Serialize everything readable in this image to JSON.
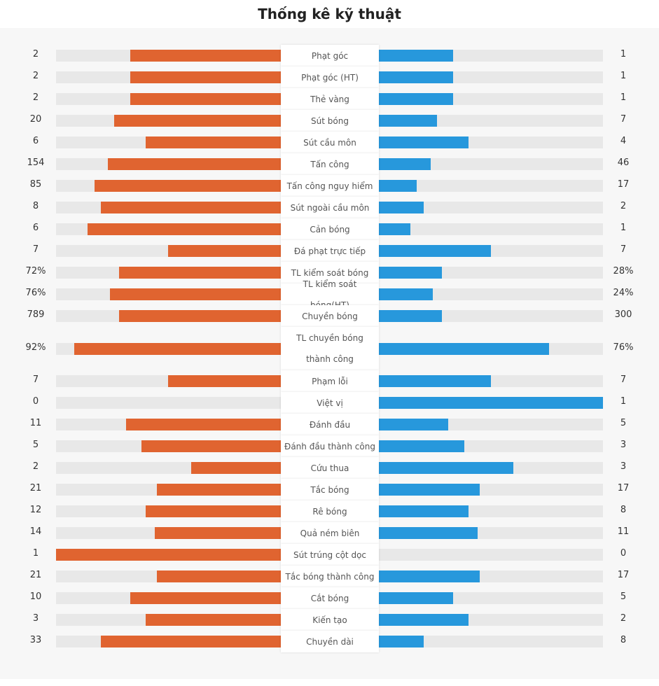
{
  "title": "Thống kê kỹ thuật",
  "colors": {
    "home": "#e06430",
    "away": "#2798dc",
    "track": "#e8e8e8"
  },
  "chart_data": {
    "type": "bar",
    "orientation": "diverging-horizontal",
    "title": "Thống kê kỹ thuật",
    "series": [
      {
        "name": "home",
        "side": "left",
        "color": "#e06430"
      },
      {
        "name": "away",
        "side": "right",
        "color": "#2798dc"
      }
    ],
    "stats": [
      {
        "label": "Phạt góc",
        "home": "2",
        "away": "1",
        "home_fill": 0.67,
        "away_fill": 0.33
      },
      {
        "label": "Phạt góc (HT)",
        "home": "2",
        "away": "1",
        "home_fill": 0.67,
        "away_fill": 0.33
      },
      {
        "label": "Thẻ vàng",
        "home": "2",
        "away": "1",
        "home_fill": 0.67,
        "away_fill": 0.33
      },
      {
        "label": "Sút bóng",
        "home": "20",
        "away": "7",
        "home_fill": 0.74,
        "away_fill": 0.26
      },
      {
        "label": "Sút cầu môn",
        "home": "6",
        "away": "4",
        "home_fill": 0.6,
        "away_fill": 0.4
      },
      {
        "label": "Tấn công",
        "home": "154",
        "away": "46",
        "home_fill": 0.77,
        "away_fill": 0.23
      },
      {
        "label": "Tấn công nguy hiểm",
        "home": "85",
        "away": "17",
        "home_fill": 0.83,
        "away_fill": 0.17
      },
      {
        "label": "Sút ngoài cầu môn",
        "home": "8",
        "away": "2",
        "home_fill": 0.8,
        "away_fill": 0.2
      },
      {
        "label": "Cản bóng",
        "home": "6",
        "away": "1",
        "home_fill": 0.86,
        "away_fill": 0.14
      },
      {
        "label": "Đá phạt trực tiếp",
        "home": "7",
        "away": "7",
        "home_fill": 0.5,
        "away_fill": 0.5
      },
      {
        "label": "TL kiểm soát bóng",
        "home": "72%",
        "away": "28%",
        "home_fill": 0.72,
        "away_fill": 0.28
      },
      {
        "label": "TL kiểm soát bóng(HT)",
        "home": "76%",
        "away": "24%",
        "home_fill": 0.76,
        "away_fill": 0.24
      },
      {
        "label": "Chuyền bóng",
        "home": "789",
        "away": "300",
        "home_fill": 0.72,
        "away_fill": 0.28
      },
      {
        "label": "TL chuyền bóng thành công",
        "home": "92%",
        "away": "76%",
        "home_fill": 0.92,
        "away_fill": 0.76
      },
      {
        "label": "Phạm lỗi",
        "home": "7",
        "away": "7",
        "home_fill": 0.5,
        "away_fill": 0.5
      },
      {
        "label": "Việt vị",
        "home": "0",
        "away": "1",
        "home_fill": 0,
        "away_fill": 1
      },
      {
        "label": "Đánh đầu",
        "home": "11",
        "away": "5",
        "home_fill": 0.69,
        "away_fill": 0.31
      },
      {
        "label": "Đánh đầu thành công",
        "home": "5",
        "away": "3",
        "home_fill": 0.62,
        "away_fill": 0.38
      },
      {
        "label": "Cứu thua",
        "home": "2",
        "away": "3",
        "home_fill": 0.4,
        "away_fill": 0.6
      },
      {
        "label": "Tắc bóng",
        "home": "21",
        "away": "17",
        "home_fill": 0.55,
        "away_fill": 0.45
      },
      {
        "label": "Rê bóng",
        "home": "12",
        "away": "8",
        "home_fill": 0.6,
        "away_fill": 0.4
      },
      {
        "label": "Quả ném biên",
        "home": "14",
        "away": "11",
        "home_fill": 0.56,
        "away_fill": 0.44
      },
      {
        "label": "Sút trúng cột dọc",
        "home": "1",
        "away": "0",
        "home_fill": 1,
        "away_fill": 0
      },
      {
        "label": "Tắc bóng thành công",
        "home": "21",
        "away": "17",
        "home_fill": 0.55,
        "away_fill": 0.45
      },
      {
        "label": "Cắt bóng",
        "home": "10",
        "away": "5",
        "home_fill": 0.67,
        "away_fill": 0.33
      },
      {
        "label": "Kiến tạo",
        "home": "3",
        "away": "2",
        "home_fill": 0.6,
        "away_fill": 0.4
      },
      {
        "label": "Chuyền dài",
        "home": "33",
        "away": "8",
        "home_fill": 0.8,
        "away_fill": 0.2
      }
    ]
  }
}
